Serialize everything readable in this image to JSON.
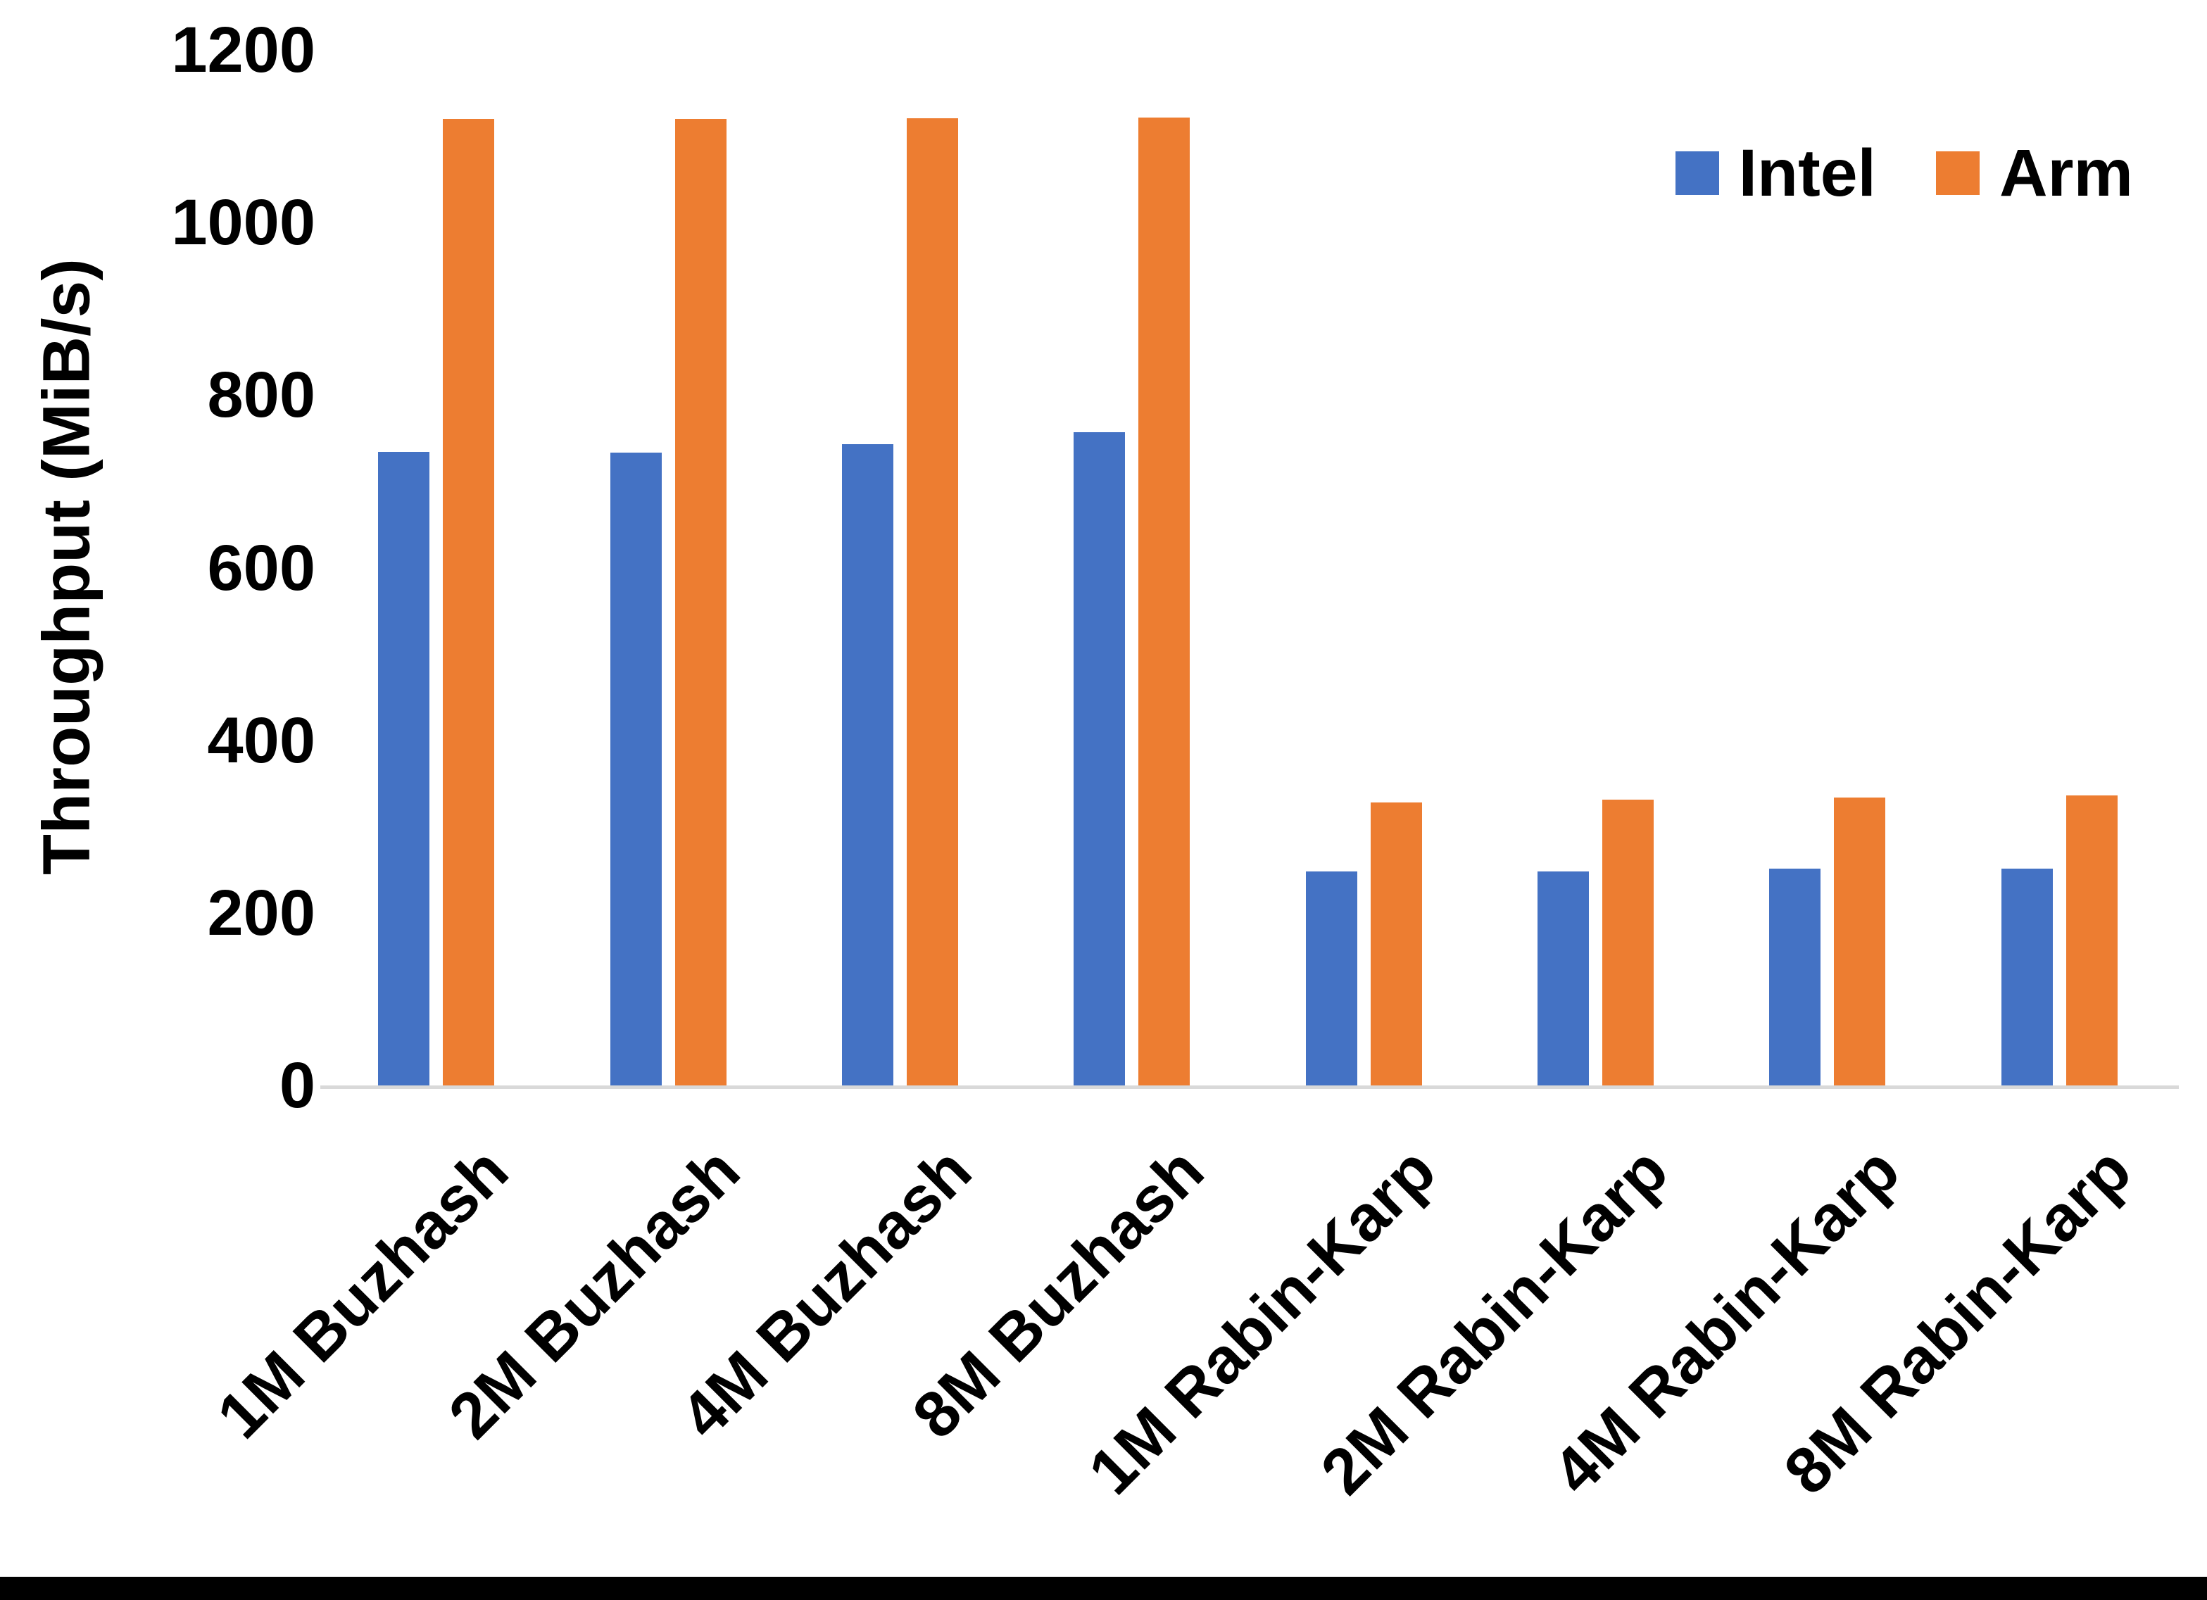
{
  "chart_data": {
    "type": "bar",
    "title": "",
    "ylabel": "Throughput (MiB/s)",
    "categories": [
      "1M Buzhash",
      "2M Buzhash",
      "4M Buzhash",
      "8M Buzhash",
      "1M Rabin-Karp",
      "2M Rabin-Karp",
      "4M Rabin-Karp",
      "8M Rabin-Karp"
    ],
    "series": [
      {
        "name": "Intel",
        "color": "#4472C4",
        "values": [
          734,
          733,
          743,
          757,
          248,
          248,
          251,
          251
        ]
      },
      {
        "name": "Arm",
        "color": "#ED7D31",
        "values": [
          1120,
          1120,
          1121,
          1122,
          328,
          331,
          334,
          336
        ]
      }
    ],
    "ylim": [
      0,
      1200
    ],
    "yticks": [
      0,
      200,
      400,
      600,
      800,
      1000,
      1200
    ],
    "grid": false,
    "legend_position": "top-right",
    "bar_orientation": "vertical",
    "x_label_rotation_deg": -45
  },
  "colors": {
    "axis_line": "#D9D9D9",
    "text": "#000000",
    "background": "#FFFFFF",
    "bottom_border": "#000000"
  }
}
